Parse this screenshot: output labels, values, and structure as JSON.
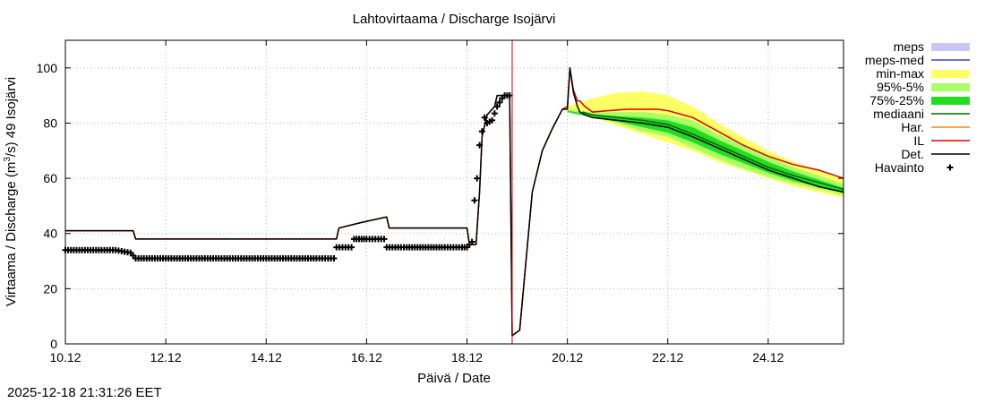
{
  "chart_data": {
    "type": "line",
    "title": "Lahtovirtaama / Discharge  Isojärvi",
    "xlabel": "Päivä / Date",
    "ylabel_pre": "Virtaama / Discharge (m",
    "ylabel_sup": "3",
    "ylabel_post": "/s)  49 Isojärvi",
    "xlim": [
      0,
      15.5
    ],
    "ylim": [
      0,
      110
    ],
    "grid": true,
    "x_unit": "days since 10.12 00:00",
    "x_ticks": [
      {
        "x": 0,
        "label": "10.12"
      },
      {
        "x": 2,
        "label": "12.12"
      },
      {
        "x": 4,
        "label": "14.12"
      },
      {
        "x": 6,
        "label": "16.12"
      },
      {
        "x": 8,
        "label": "18.12"
      },
      {
        "x": 10,
        "label": "20.12"
      },
      {
        "x": 12,
        "label": "22.12"
      },
      {
        "x": 14,
        "label": "24.12"
      }
    ],
    "y_ticks": [
      {
        "y": 0,
        "label": "0"
      },
      {
        "y": 20,
        "label": "20"
      },
      {
        "y": 40,
        "label": "40"
      },
      {
        "y": 60,
        "label": "60"
      },
      {
        "y": 80,
        "label": "80"
      },
      {
        "y": 100,
        "label": "100"
      }
    ],
    "forecast_time_x": 8.9,
    "bands": [
      {
        "name": "min-max",
        "color": "#ffff66",
        "x": [
          10,
          10.5,
          11,
          11.5,
          12,
          12.5,
          13,
          13.5,
          14,
          14.5,
          15,
          15.5
        ],
        "upper": [
          86,
          89,
          91,
          91.5,
          90,
          86,
          80,
          75,
          70,
          66,
          63,
          60
        ],
        "lower": [
          84,
          82,
          79,
          76,
          73,
          70,
          66,
          63,
          60,
          57,
          55,
          53
        ]
      },
      {
        "name": "95%-5%",
        "color": "#aaff66",
        "x": [
          10,
          10.5,
          11,
          11.5,
          12,
          12.5,
          13,
          13.5,
          14,
          14.5,
          15,
          15.5
        ],
        "upper": [
          85,
          84,
          84,
          84,
          83,
          81,
          76,
          72,
          68,
          64,
          61,
          58
        ],
        "lower": [
          84,
          82,
          80,
          77,
          75,
          71,
          67,
          63.5,
          60.5,
          58,
          56,
          54
        ]
      },
      {
        "name": "75%-25%",
        "color": "#22dd22",
        "x": [
          10,
          10.5,
          11,
          11.5,
          12,
          12.5,
          13,
          13.5,
          14,
          14.5,
          15,
          15.5
        ],
        "upper": [
          84.5,
          83,
          82.5,
          82,
          81,
          78.5,
          74,
          70,
          66,
          62.5,
          59.5,
          56.5
        ],
        "lower": [
          84,
          82,
          80.5,
          78.5,
          76.5,
          73,
          69,
          65.5,
          62,
          59,
          57,
          55
        ]
      }
    ],
    "series": [
      {
        "name": "IL",
        "color": "#dd0000",
        "x": [
          0,
          1.35,
          1.4,
          5.4,
          5.45,
          5.9,
          6.4,
          6.45,
          8.0,
          8.05,
          8.18,
          8.25,
          8.3,
          8.4,
          8.55,
          8.6,
          8.85,
          8.9,
          9.05,
          9.15,
          9.3,
          9.5,
          9.7,
          9.9,
          10.0,
          10.05,
          10.12,
          10.2,
          10.25,
          10.35,
          10.5,
          10.8,
          11.2,
          11.5,
          11.8,
          12.0,
          12.5,
          13,
          13.5,
          14,
          14.5,
          15,
          15.5
        ],
        "y": [
          41,
          41,
          38,
          38,
          42,
          44,
          46,
          42,
          42,
          36,
          36,
          55,
          75,
          83,
          86,
          90,
          90,
          3,
          5,
          25,
          55,
          70,
          78,
          85,
          86,
          100,
          92,
          88,
          88,
          86,
          84,
          84.5,
          85,
          85,
          85,
          84.5,
          82,
          77,
          72,
          68,
          65,
          63,
          60
        ]
      },
      {
        "name": "Det.",
        "color": "#000000",
        "x": [
          0,
          1.35,
          1.4,
          5.4,
          5.45,
          5.9,
          6.4,
          6.45,
          8.0,
          8.05,
          8.18,
          8.25,
          8.3,
          8.4,
          8.55,
          8.6,
          8.85,
          8.9,
          9.05,
          9.15,
          9.3,
          9.5,
          9.7,
          9.9,
          10.0,
          10.05,
          10.12,
          10.2,
          10.25,
          10.35,
          10.5,
          11,
          11.5,
          12,
          12.5,
          13,
          13.5,
          14,
          14.5,
          15,
          15.5
        ],
        "y": [
          41,
          41,
          38,
          38,
          42,
          44,
          46,
          42,
          42,
          36,
          36,
          55,
          75,
          83,
          86,
          90,
          90,
          3,
          5,
          25,
          55,
          70,
          78,
          85,
          85,
          100,
          91,
          86,
          84,
          83,
          82,
          81,
          80,
          78.5,
          75,
          71,
          67,
          63,
          60,
          57,
          55
        ]
      },
      {
        "name": "mediaani",
        "color": "#006600",
        "x": [
          10.3,
          10.5,
          11,
          11.5,
          12,
          12.5,
          13,
          13.5,
          14,
          14.5,
          15,
          15.5
        ],
        "y": [
          84,
          83,
          82,
          81,
          79.5,
          76,
          72,
          68,
          64,
          61,
          58.5,
          56
        ]
      }
    ],
    "observations": {
      "name": "Havainto",
      "x": [
        0,
        0.5,
        1.0,
        1.3,
        1.35,
        1.4,
        2.0,
        3.0,
        4.0,
        5.0,
        5.35,
        5.4,
        5.7,
        5.75,
        6.0,
        6.35,
        6.4,
        6.8,
        7.5,
        7.9,
        8.0,
        8.1,
        8.15,
        8.2,
        8.25,
        8.35,
        8.4,
        8.5,
        8.6,
        8.7,
        8.75,
        8.8,
        8.85
      ],
      "y": [
        34,
        34,
        34,
        33,
        32,
        31,
        31,
        31,
        31,
        31,
        31,
        35,
        35,
        38,
        38,
        38,
        35,
        35,
        35,
        35,
        35,
        37,
        52,
        60,
        72,
        82,
        80,
        81,
        86,
        89,
        90,
        90,
        90
      ]
    },
    "legend": {
      "position": "top-right-outside",
      "entries": [
        {
          "label": "meps",
          "color": "#c8c8f8",
          "style": "box"
        },
        {
          "label": "meps-med",
          "color": "#4040bb",
          "style": "line"
        },
        {
          "label": "min-max",
          "color": "#ffff66",
          "style": "box"
        },
        {
          "label": "95%-5%",
          "color": "#aaff66",
          "style": "box"
        },
        {
          "label": "75%-25%",
          "color": "#22dd22",
          "style": "box"
        },
        {
          "label": "mediaani",
          "color": "#006600",
          "style": "line"
        },
        {
          "label": "Har.",
          "color": "#ff8800",
          "style": "line"
        },
        {
          "label": "IL",
          "color": "#dd0000",
          "style": "line"
        },
        {
          "label": "Det.",
          "color": "#000000",
          "style": "line"
        },
        {
          "label": "Havainto",
          "color": "#000000",
          "style": "marker"
        }
      ]
    }
  },
  "footer": {
    "timestamp": "2025-12-18 21:31:26 EET"
  }
}
